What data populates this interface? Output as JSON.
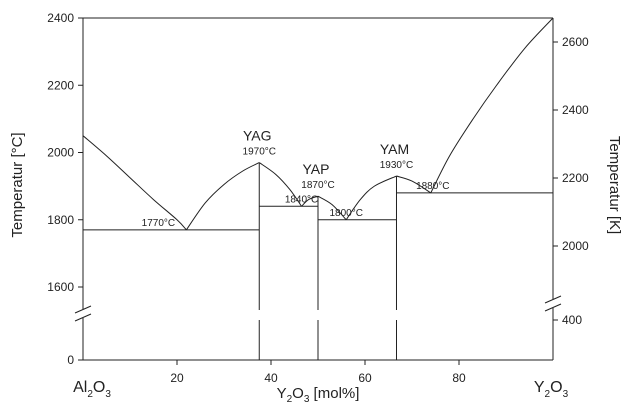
{
  "chart_data": {
    "type": "line",
    "xlabel_main": "Y",
    "xlabel_sub": "2",
    "xlabel_main2": "O",
    "xlabel_sub2": "3",
    "xlabel_rest": " [mol%]",
    "ylabel_left": "Temperatur [°C]",
    "ylabel_right": "Temperatur [K]",
    "xlim": [
      0,
      100
    ],
    "ylim": [
      1500,
      2400
    ],
    "x_ticks": [
      "20",
      "40",
      "60",
      "80"
    ],
    "x_tick_values": [
      20,
      40,
      60,
      80
    ],
    "y_ticks_left": [
      "1600",
      "1800",
      "2000",
      "2200",
      "2400"
    ],
    "y_tick_values_left": [
      1600,
      1800,
      2000,
      2200,
      2400
    ],
    "y_bottom_tick_left": "0",
    "y_ticks_right": [
      "2000",
      "2200",
      "2400",
      "2600"
    ],
    "y_tick_values_right_k": [
      2000,
      2200,
      2400,
      2600
    ],
    "y_bottom_tick_right": "400",
    "composition_left": {
      "a": "Al",
      "b": "2",
      "c": "O",
      "d": "3"
    },
    "composition_right": {
      "a": "Y",
      "b": "2",
      "c": "O",
      "d": "3"
    },
    "compounds": [
      {
        "name": "YAG",
        "x": 37.5,
        "melting": "1970°C",
        "y": 1970
      },
      {
        "name": "YAP",
        "x": 50,
        "melting": "1870°C",
        "y": 1870
      },
      {
        "name": "YAM",
        "x": 66.7,
        "melting": "1930°C",
        "y": 1930
      }
    ],
    "eutectics": [
      {
        "label": "1770°C",
        "x": 22,
        "y": 1770,
        "from": 0,
        "to": 37.5
      },
      {
        "label": "1840°C",
        "x": 46.5,
        "y": 1840,
        "from": 37.5,
        "to": 50
      },
      {
        "label": "1800°C",
        "x": 56,
        "y": 1800,
        "from": 50,
        "to": 66.7
      },
      {
        "label": "1880°C",
        "x": 74,
        "y": 1880,
        "from": 66.7,
        "to": 100
      }
    ],
    "liquidus": [
      [
        [
          0,
          2050
        ],
        [
          5,
          1990
        ],
        [
          10,
          1925
        ],
        [
          15,
          1860
        ],
        [
          20,
          1800
        ],
        [
          22,
          1770
        ]
      ],
      [
        [
          22,
          1770
        ],
        [
          26,
          1850
        ],
        [
          30,
          1905
        ],
        [
          34,
          1945
        ],
        [
          37.5,
          1970
        ]
      ],
      [
        [
          37.5,
          1970
        ],
        [
          41,
          1935
        ],
        [
          44,
          1890
        ],
        [
          46.5,
          1840
        ]
      ],
      [
        [
          46.5,
          1840
        ],
        [
          48,
          1860
        ],
        [
          50,
          1870
        ]
      ],
      [
        [
          50,
          1870
        ],
        [
          53,
          1845
        ],
        [
          56,
          1800
        ]
      ],
      [
        [
          56,
          1800
        ],
        [
          59,
          1860
        ],
        [
          62,
          1900
        ],
        [
          66.7,
          1930
        ]
      ],
      [
        [
          66.7,
          1930
        ],
        [
          70,
          1915
        ],
        [
          74,
          1880
        ]
      ],
      [
        [
          74,
          1880
        ],
        [
          78,
          1990
        ],
        [
          83,
          2100
        ],
        [
          88,
          2200
        ],
        [
          94,
          2310
        ],
        [
          100,
          2400
        ]
      ]
    ]
  }
}
